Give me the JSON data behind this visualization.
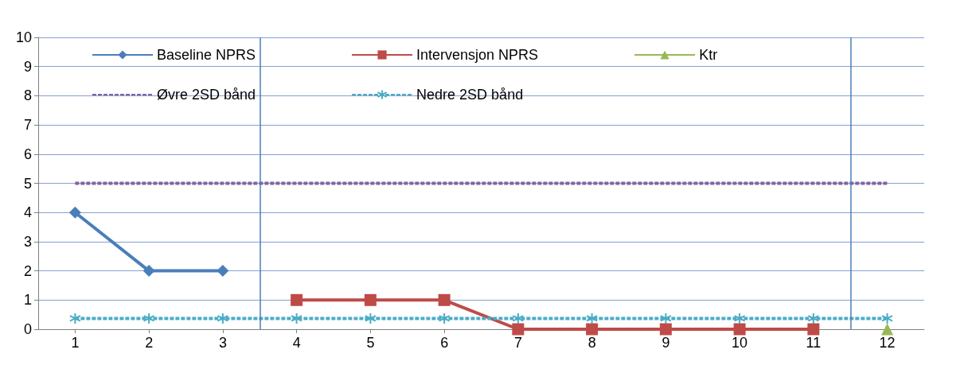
{
  "chart_data": {
    "type": "line",
    "x": [
      1,
      2,
      3,
      4,
      5,
      6,
      7,
      8,
      9,
      10,
      11,
      12
    ],
    "xlim": [
      0.5,
      12.5
    ],
    "xticks": [
      1,
      2,
      3,
      4,
      5,
      6,
      7,
      8,
      9,
      10,
      11,
      12
    ],
    "ylim": [
      0,
      10
    ],
    "yticks": [
      0,
      1,
      2,
      3,
      4,
      5,
      6,
      7,
      8,
      9,
      10
    ],
    "grid": "y",
    "legend": "top",
    "series": [
      {
        "name": "Baseline NPRS",
        "color": "#4a7ebb",
        "marker": "diamond",
        "line_style": "solid",
        "values": [
          4,
          2,
          2,
          null,
          null,
          null,
          null,
          null,
          null,
          null,
          null,
          null
        ]
      },
      {
        "name": "Intervensjon NPRS",
        "color": "#be4b48",
        "marker": "square",
        "line_style": "solid",
        "values": [
          null,
          null,
          null,
          1,
          1,
          1,
          0,
          0,
          0,
          0,
          0,
          null
        ]
      },
      {
        "name": "Ktr",
        "color": "#98b954",
        "marker": "triangle",
        "line_style": "solid",
        "values": [
          null,
          null,
          null,
          null,
          null,
          null,
          null,
          null,
          null,
          null,
          null,
          0
        ]
      },
      {
        "name": "Øvre 2SD bånd",
        "color": "#8064a2",
        "marker": "none",
        "line_style": "dashed",
        "values": [
          5,
          5,
          5,
          5,
          5,
          5,
          5,
          5,
          5,
          5,
          5,
          5
        ]
      },
      {
        "name": "Nedre 2SD bånd",
        "color": "#4bacc6",
        "marker": "cross",
        "line_style": "dashed",
        "values": [
          0.37,
          0.37,
          0.37,
          0.37,
          0.37,
          0.37,
          0.37,
          0.37,
          0.37,
          0.37,
          0.37,
          0.37
        ]
      }
    ],
    "ref_lines": [
      {
        "axis": "x",
        "value": 3.5,
        "color": "#4a7ebb"
      },
      {
        "axis": "x",
        "value": 11.5,
        "color": "#4a7ebb"
      }
    ]
  }
}
